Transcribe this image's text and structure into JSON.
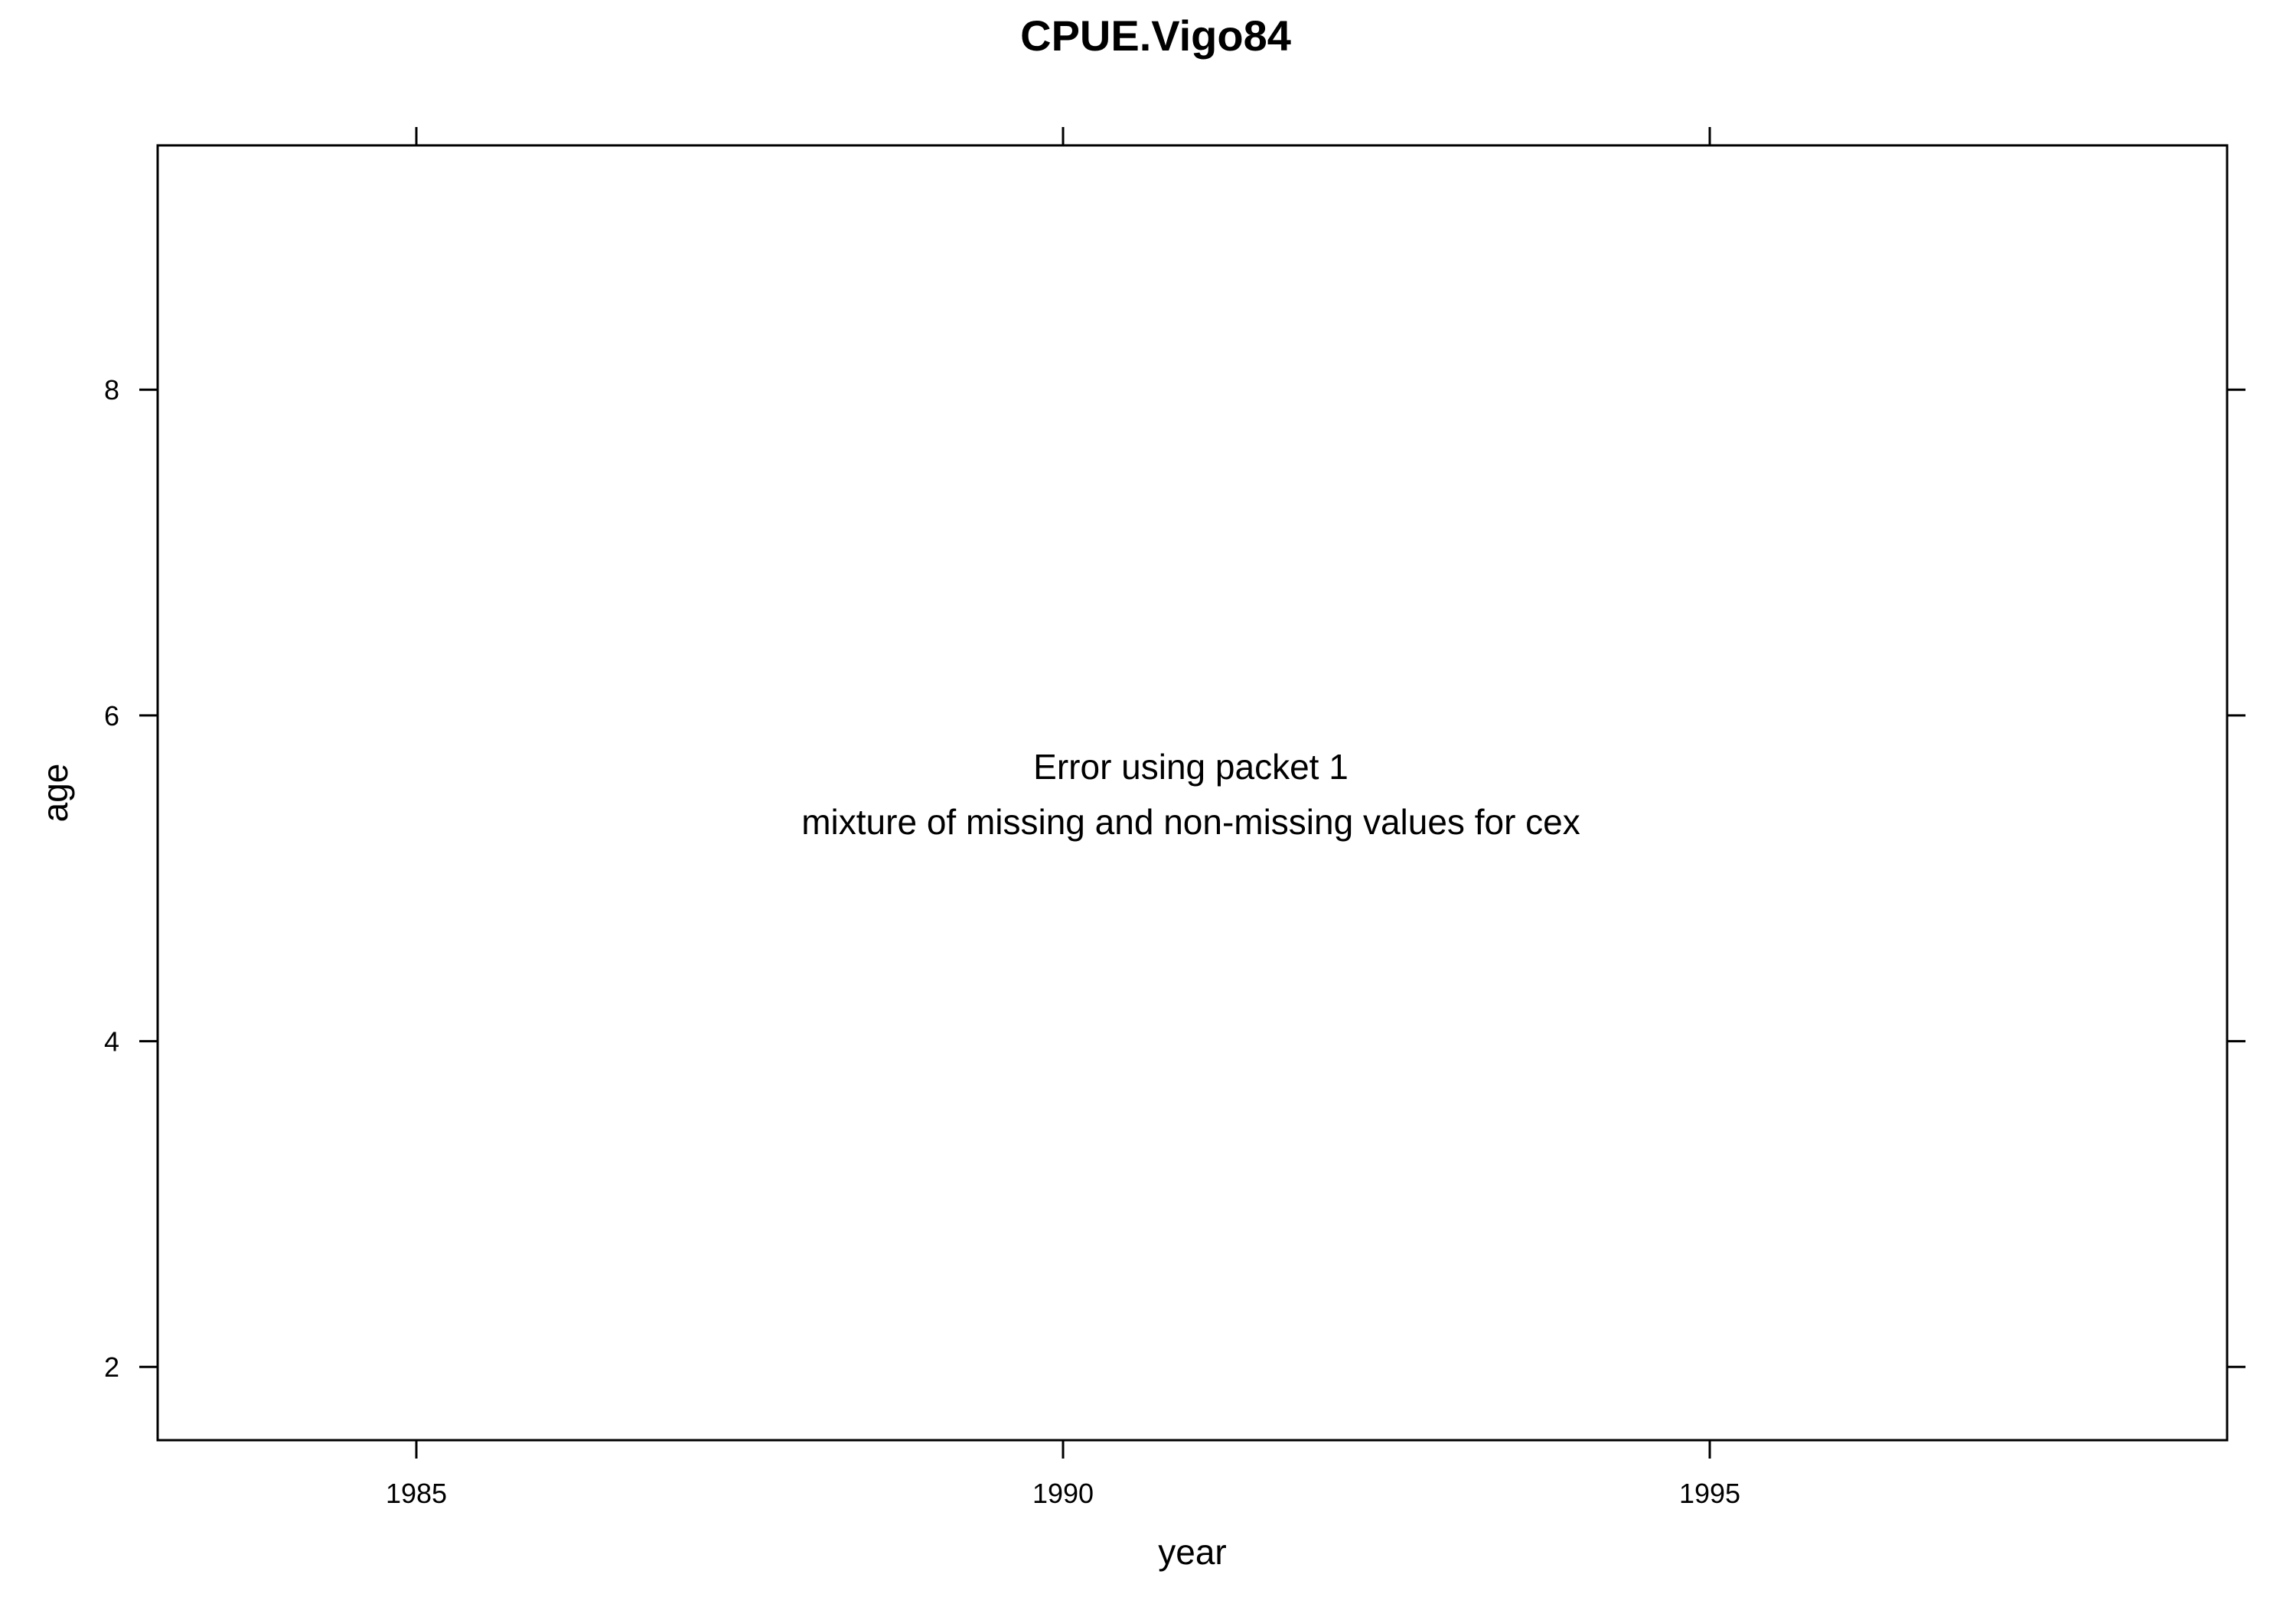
{
  "chart_data": {
    "type": "scatter",
    "title": "CPUE.Vigo84",
    "xlabel": "year",
    "ylabel": "age",
    "xlim": [
      1983.0,
      1999.0
    ],
    "ylim": [
      1.55,
      9.5
    ],
    "x_ticks": [
      1985,
      1990,
      1995
    ],
    "y_ticks": [
      2,
      4,
      6,
      8
    ],
    "grid": false,
    "series": [],
    "panel_message": {
      "line1": "Error using packet 1",
      "line2": "mixture of missing and non-missing values for cex"
    }
  }
}
